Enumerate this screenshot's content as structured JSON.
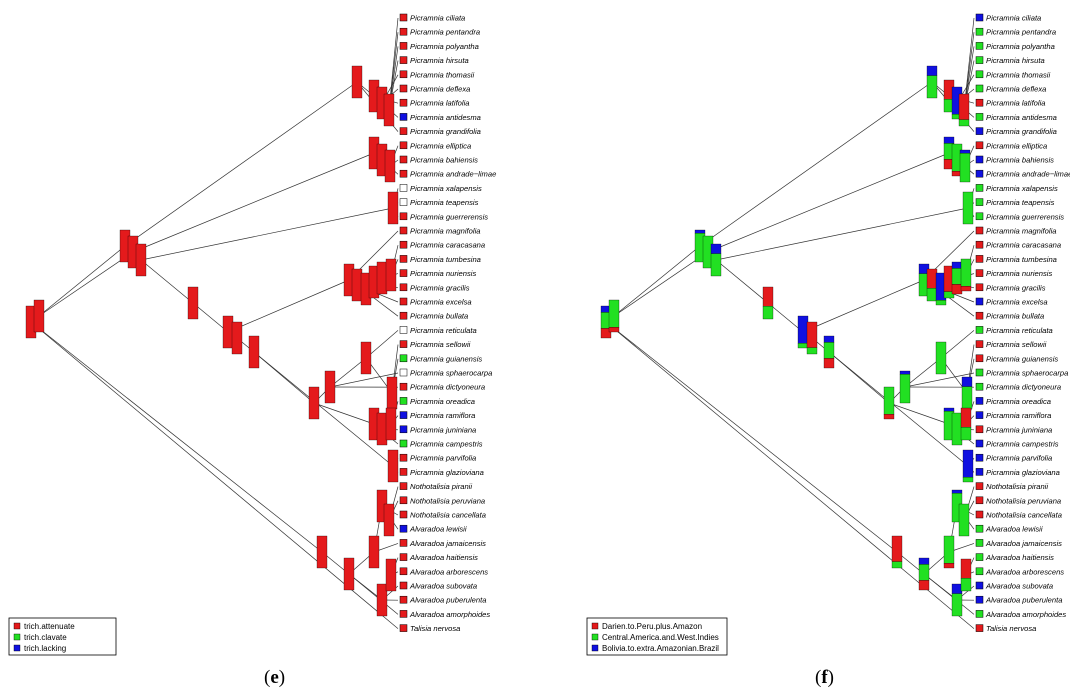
{
  "panels": [
    {
      "id": "e",
      "label_prefix": "(",
      "label_letter": "e",
      "label_suffix": ")",
      "legend": [
        {
          "label": "trich.attenuate",
          "color": "#e41a1c"
        },
        {
          "label": "trich.clavate",
          "color": "#22e022"
        },
        {
          "label": "trich.lacking",
          "color": "#1010e0"
        }
      ],
      "tips": [
        {
          "name": "Picramnia ciliata",
          "state": "red"
        },
        {
          "name": "Picramnia pentandra",
          "state": "red"
        },
        {
          "name": "Picramnia polyantha",
          "state": "red"
        },
        {
          "name": "Picramnia hirsuta",
          "state": "red"
        },
        {
          "name": "Picramnia thomasii",
          "state": "red"
        },
        {
          "name": "Picramnia deflexa",
          "state": "red"
        },
        {
          "name": "Picramnia latifolia",
          "state": "red"
        },
        {
          "name": "Picramnia antidesma",
          "state": "blue"
        },
        {
          "name": "Picramnia grandifolia",
          "state": "red"
        },
        {
          "name": "Picramnia elliptica",
          "state": "red"
        },
        {
          "name": "Picramnia bahiensis",
          "state": "red"
        },
        {
          "name": "Picramnia andrade−limae",
          "state": "red"
        },
        {
          "name": "Picramnia xalapensis",
          "state": "white"
        },
        {
          "name": "Picramnia teapensis",
          "state": "white"
        },
        {
          "name": "Picramnia guerrerensis",
          "state": "red"
        },
        {
          "name": "Picramnia magnifolia",
          "state": "red"
        },
        {
          "name": "Picramnia caracasana",
          "state": "red"
        },
        {
          "name": "Picramnia tumbesina",
          "state": "red"
        },
        {
          "name": "Picramnia nuriensis",
          "state": "red"
        },
        {
          "name": "Picramnia gracilis",
          "state": "red"
        },
        {
          "name": "Picramnia excelsa",
          "state": "red"
        },
        {
          "name": "Picramnia bullata",
          "state": "red"
        },
        {
          "name": "Picramnia reticulata",
          "state": "white"
        },
        {
          "name": "Picramnia sellowii",
          "state": "red"
        },
        {
          "name": "Picramnia guianensis",
          "state": "green"
        },
        {
          "name": "Picramnia sphaerocarpa",
          "state": "white"
        },
        {
          "name": "Picramnia dictyoneura",
          "state": "red"
        },
        {
          "name": "Picramnia oreadica",
          "state": "green"
        },
        {
          "name": "Picramnia ramiflora",
          "state": "blue"
        },
        {
          "name": "Picramnia juniniana",
          "state": "blue"
        },
        {
          "name": "Picramnia campestris",
          "state": "green"
        },
        {
          "name": "Picramnia parvifolia",
          "state": "red"
        },
        {
          "name": "Picramnia glazioviana",
          "state": "red"
        },
        {
          "name": "Nothotalisia piranii",
          "state": "red"
        },
        {
          "name": "Nothotalisia peruviana",
          "state": "red"
        },
        {
          "name": "Nothotalisia cancellata",
          "state": "red"
        },
        {
          "name": "Alvaradoa lewisii",
          "state": "blue"
        },
        {
          "name": "Alvaradoa jamaicensis",
          "state": "red"
        },
        {
          "name": "Alvaradoa haitiensis",
          "state": "red"
        },
        {
          "name": "Alvaradoa arborescens",
          "state": "red"
        },
        {
          "name": "Alvaradoa subovata",
          "state": "red"
        },
        {
          "name": "Alvaradoa puberulenta",
          "state": "red"
        },
        {
          "name": "Alvaradoa amorphoides",
          "state": "red"
        },
        {
          "name": "Talisia nervosa",
          "state": "red"
        }
      ]
    },
    {
      "id": "f",
      "label_prefix": "(",
      "label_letter": "f",
      "label_suffix": ")",
      "legend": [
        {
          "label": "Darien.to.Peru.plus.Amazon",
          "color": "#e41a1c"
        },
        {
          "label": "Central.America.and.West.Indies",
          "color": "#22e022"
        },
        {
          "label": "Bolivia.to.extra.Amazonian.Brazil",
          "color": "#1010e0"
        }
      ],
      "tips": [
        {
          "name": "Picramnia ciliata",
          "state": "blue"
        },
        {
          "name": "Picramnia pentandra",
          "state": "green"
        },
        {
          "name": "Picramnia polyantha",
          "state": "green"
        },
        {
          "name": "Picramnia hirsuta",
          "state": "green"
        },
        {
          "name": "Picramnia thomasii",
          "state": "green"
        },
        {
          "name": "Picramnia deflexa",
          "state": "green"
        },
        {
          "name": "Picramnia latifolia",
          "state": "red"
        },
        {
          "name": "Picramnia antidesma",
          "state": "green"
        },
        {
          "name": "Picramnia grandifolia",
          "state": "blue"
        },
        {
          "name": "Picramnia elliptica",
          "state": "red"
        },
        {
          "name": "Picramnia bahiensis",
          "state": "blue"
        },
        {
          "name": "Picramnia andrade−limae",
          "state": "blue"
        },
        {
          "name": "Picramnia xalapensis",
          "state": "green"
        },
        {
          "name": "Picramnia teapensis",
          "state": "green"
        },
        {
          "name": "Picramnia guerrerensis",
          "state": "green"
        },
        {
          "name": "Picramnia magnifolia",
          "state": "red"
        },
        {
          "name": "Picramnia caracasana",
          "state": "red"
        },
        {
          "name": "Picramnia tumbesina",
          "state": "red"
        },
        {
          "name": "Picramnia nuriensis",
          "state": "red"
        },
        {
          "name": "Picramnia gracilis",
          "state": "red"
        },
        {
          "name": "Picramnia excelsa",
          "state": "blue"
        },
        {
          "name": "Picramnia bullata",
          "state": "red"
        },
        {
          "name": "Picramnia reticulata",
          "state": "green"
        },
        {
          "name": "Picramnia sellowii",
          "state": "red"
        },
        {
          "name": "Picramnia guianensis",
          "state": "red"
        },
        {
          "name": "Picramnia sphaerocarpa",
          "state": "green"
        },
        {
          "name": "Picramnia dictyoneura",
          "state": "green"
        },
        {
          "name": "Picramnia oreadica",
          "state": "blue"
        },
        {
          "name": "Picramnia ramiflora",
          "state": "blue"
        },
        {
          "name": "Picramnia juniniana",
          "state": "red"
        },
        {
          "name": "Picramnia campestris",
          "state": "blue"
        },
        {
          "name": "Picramnia parvifolia",
          "state": "blue"
        },
        {
          "name": "Picramnia glazioviana",
          "state": "blue"
        },
        {
          "name": "Nothotalisia piranii",
          "state": "red"
        },
        {
          "name": "Nothotalisia peruviana",
          "state": "red"
        },
        {
          "name": "Nothotalisia cancellata",
          "state": "red"
        },
        {
          "name": "Alvaradoa lewisii",
          "state": "green"
        },
        {
          "name": "Alvaradoa jamaicensis",
          "state": "green"
        },
        {
          "name": "Alvaradoa haitiensis",
          "state": "green"
        },
        {
          "name": "Alvaradoa arborescens",
          "state": "green"
        },
        {
          "name": "Alvaradoa subovata",
          "state": "blue"
        },
        {
          "name": "Alvaradoa puberulenta",
          "state": "blue"
        },
        {
          "name": "Alvaradoa amorphoides",
          "state": "green"
        },
        {
          "name": "Talisia nervosa",
          "state": "red"
        }
      ]
    }
  ],
  "colors": {
    "red": "#e41a1c",
    "green": "#22e022",
    "blue": "#1010e0",
    "white": "#ffffff",
    "line": "#333333"
  }
}
